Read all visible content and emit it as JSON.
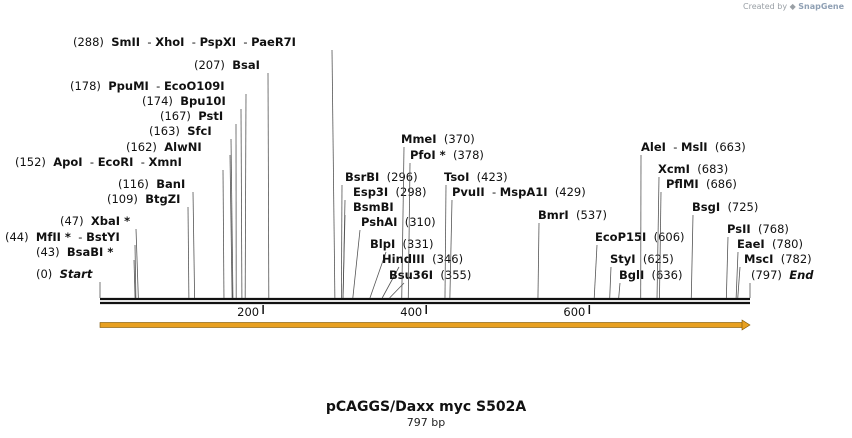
{
  "credit": {
    "prefix": "Created by",
    "brand": "SnapGene"
  },
  "map": {
    "title": "pCAGGS/Daxx myc S502A",
    "length": "797 bp",
    "total_bp": 797,
    "ticks": [
      200,
      400,
      600
    ],
    "feature": {
      "name": "orange-arrow-feature",
      "color": "#e8a020",
      "start": 1,
      "end": 797
    }
  },
  "sites": [
    {
      "names": [
        "Start"
      ],
      "pos_label": "(0)",
      "pos": 0,
      "italic": true
    },
    {
      "names": [
        "BsaBI *"
      ],
      "pos_label": "(43)",
      "pos": 43
    },
    {
      "names": [
        "MfII *",
        "BstYI"
      ],
      "pos_label": "(44)",
      "pos": 44
    },
    {
      "names": [
        "XbaI *"
      ],
      "pos_label": "(47)",
      "pos": 47
    },
    {
      "names": [
        "BtgZI"
      ],
      "pos_label": "(109)",
      "pos": 109
    },
    {
      "names": [
        "BanI"
      ],
      "pos_label": "(116)",
      "pos": 116
    },
    {
      "names": [
        "ApoI",
        "EcoRI",
        "XmnI"
      ],
      "pos_label": "(152)",
      "pos": 152
    },
    {
      "names": [
        "AlwNI"
      ],
      "pos_label": "(162)",
      "pos": 162
    },
    {
      "names": [
        "SfcI"
      ],
      "pos_label": "(163)",
      "pos": 163
    },
    {
      "names": [
        "PstI"
      ],
      "pos_label": "(167)",
      "pos": 167
    },
    {
      "names": [
        "Bpu10I"
      ],
      "pos_label": "(174)",
      "pos": 174
    },
    {
      "names": [
        "PpuMI",
        "EcoO109I"
      ],
      "pos_label": "(178)",
      "pos": 178
    },
    {
      "names": [
        "BsaI"
      ],
      "pos_label": "(207)",
      "pos": 207
    },
    {
      "names": [
        "SmII",
        "XhoI",
        "PspXI",
        "PaeR7I"
      ],
      "pos_label": "(288)",
      "pos": 288
    },
    {
      "names": [
        "BsrBI"
      ],
      "pos_label": "(296)",
      "pos": 296
    },
    {
      "names": [
        "Esp3I"
      ],
      "pos_label": "(298)",
      "pos": 298
    },
    {
      "names": [
        "BsmBI"
      ],
      "pos_label": "",
      "pos": 298
    },
    {
      "names": [
        "PshAI"
      ],
      "pos_label": "(310)",
      "pos": 310
    },
    {
      "names": [
        "BlpI"
      ],
      "pos_label": "(331)",
      "pos": 331
    },
    {
      "names": [
        "HindIII"
      ],
      "pos_label": "(346)",
      "pos": 346
    },
    {
      "names": [
        "Bsu36I"
      ],
      "pos_label": "(355)",
      "pos": 355
    },
    {
      "names": [
        "MmeI"
      ],
      "pos_label": "(370)",
      "pos": 370
    },
    {
      "names": [
        "PfoI *"
      ],
      "pos_label": "(378)",
      "pos": 378
    },
    {
      "names": [
        "TsoI"
      ],
      "pos_label": "(423)",
      "pos": 423
    },
    {
      "names": [
        "PvuII",
        "MspA1I"
      ],
      "pos_label": "(429)",
      "pos": 429
    },
    {
      "names": [
        "BmrI"
      ],
      "pos_label": "(537)",
      "pos": 537
    },
    {
      "names": [
        "EcoP15I"
      ],
      "pos_label": "(606)",
      "pos": 606
    },
    {
      "names": [
        "StyI"
      ],
      "pos_label": "(625)",
      "pos": 625
    },
    {
      "names": [
        "BglI"
      ],
      "pos_label": "(636)",
      "pos": 636
    },
    {
      "names": [
        "AleI",
        "MslI"
      ],
      "pos_label": "(663)",
      "pos": 663
    },
    {
      "names": [
        "XcmI"
      ],
      "pos_label": "(683)",
      "pos": 683
    },
    {
      "names": [
        "PflMI"
      ],
      "pos_label": "(686)",
      "pos": 686
    },
    {
      "names": [
        "BsgI"
      ],
      "pos_label": "(725)",
      "pos": 725
    },
    {
      "names": [
        "PsII"
      ],
      "pos_label": "(768)",
      "pos": 768
    },
    {
      "names": [
        "EaeI"
      ],
      "pos_label": "(780)",
      "pos": 780
    },
    {
      "names": [
        "MscI"
      ],
      "pos_label": "(782)",
      "pos": 782
    },
    {
      "names": [
        "End"
      ],
      "pos_label": "(797)",
      "pos": 797,
      "italic": true
    }
  ]
}
